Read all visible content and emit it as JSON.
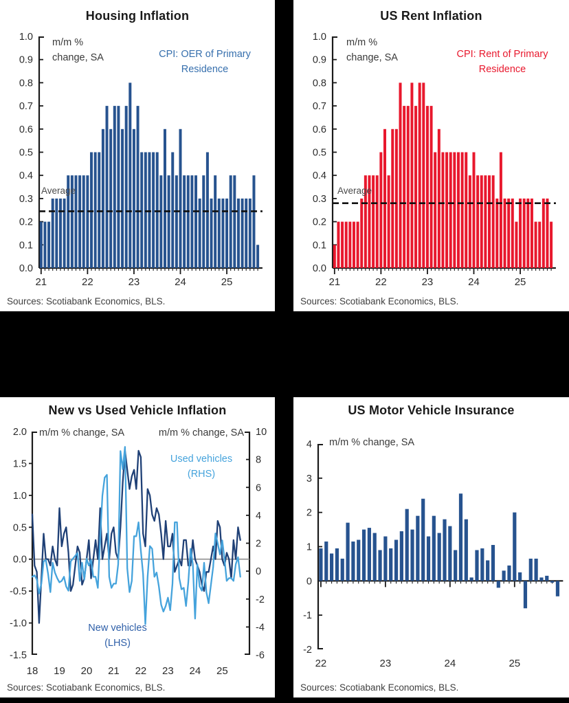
{
  "page_background": "#000000",
  "panel_background": "#ffffff",
  "colors": {
    "navy_bar": "#27538F",
    "red_bar": "#E8182D",
    "navy_line": "#1F4076",
    "light_blue_line": "#45A3DC",
    "legend_blue_text": "#366FAD",
    "legend_red_text": "#E8182D",
    "new_vehicles_label_blue": "#2E5FA8",
    "axis": "#1a1a1a",
    "zero_line_gray": "#8f8f8f",
    "average_dash": "#111111"
  },
  "chart_data": [
    {
      "type": "bar",
      "title": "Housing Inflation",
      "unit_label": [
        "m/m %",
        "change, SA"
      ],
      "legend": [
        "CPI: OER of Primary",
        "Residence"
      ],
      "legend_color": "#366FAD",
      "bar_color": "#27538F",
      "average_label": "Average",
      "average_value": 0.245,
      "ylim": [
        0,
        1.0
      ],
      "y_tick_labels": [
        "1.0",
        "0.9",
        "0.8",
        "0.7",
        "0.6",
        "0.5",
        "0.4",
        "0.3",
        "0.2",
        "0.1",
        "0.0"
      ],
      "x_tick_labels": [
        "21",
        "22",
        "23",
        "24",
        "25"
      ],
      "months_per_tick": 12,
      "values": [
        0.2,
        0.2,
        0.2,
        0.3,
        0.3,
        0.3,
        0.3,
        0.4,
        0.4,
        0.4,
        0.4,
        0.4,
        0.4,
        0.5,
        0.5,
        0.5,
        0.6,
        0.7,
        0.6,
        0.7,
        0.7,
        0.6,
        0.7,
        0.8,
        0.6,
        0.7,
        0.5,
        0.5,
        0.5,
        0.5,
        0.5,
        0.4,
        0.6,
        0.4,
        0.5,
        0.4,
        0.6,
        0.4,
        0.4,
        0.4,
        0.4,
        0.3,
        0.4,
        0.5,
        0.3,
        0.4,
        0.3,
        0.3,
        0.3,
        0.4,
        0.4,
        0.3,
        0.3,
        0.3,
        0.3,
        0.4,
        0.1
      ],
      "sources": "Sources: Scotiabank Economics, BLS."
    },
    {
      "type": "bar",
      "title": "US Rent Inflation",
      "unit_label": [
        "m/m %",
        "change, SA"
      ],
      "legend": [
        "CPI: Rent of Primary",
        "Residence"
      ],
      "legend_color": "#E8182D",
      "bar_color": "#E8182D",
      "average_label": "Average",
      "average_value": 0.28,
      "ylim": [
        0,
        1.0
      ],
      "y_tick_labels": [
        "1.0",
        "0.9",
        "0.8",
        "0.7",
        "0.6",
        "0.5",
        "0.4",
        "0.3",
        "0.2",
        "0.1",
        "0.0"
      ],
      "x_tick_labels": [
        "21",
        "22",
        "23",
        "24",
        "25"
      ],
      "months_per_tick": 12,
      "values": [
        0.1,
        0.2,
        0.2,
        0.2,
        0.2,
        0.2,
        0.2,
        0.3,
        0.4,
        0.4,
        0.4,
        0.4,
        0.5,
        0.6,
        0.4,
        0.6,
        0.6,
        0.8,
        0.7,
        0.7,
        0.8,
        0.7,
        0.8,
        0.8,
        0.7,
        0.7,
        0.5,
        0.6,
        0.5,
        0.5,
        0.5,
        0.5,
        0.5,
        0.5,
        0.5,
        0.4,
        0.5,
        0.4,
        0.4,
        0.4,
        0.4,
        0.4,
        0.3,
        0.5,
        0.3,
        0.3,
        0.3,
        0.2,
        0.3,
        0.3,
        0.3,
        0.3,
        0.2,
        0.2,
        0.3,
        0.3,
        0.2
      ],
      "sources": "Sources: Scotiabank Economics, BLS."
    },
    {
      "type": "line",
      "title": "New vs Used Vehicle Inflation",
      "unit_label_left": "m/m % change, SA",
      "unit_label_right": "m/m % change, SA",
      "x_tick_labels": [
        "18",
        "19",
        "20",
        "21",
        "22",
        "23",
        "24",
        "25"
      ],
      "months_per_tick": 12,
      "left_axis": {
        "ylim": [
          -1.5,
          2.0
        ],
        "y_tick_labels": [
          "2.0",
          "1.5",
          "1.0",
          "0.5",
          "0.0",
          "-0.5",
          "-1.0",
          "-1.5"
        ]
      },
      "right_axis": {
        "ylim": [
          -6,
          10
        ],
        "y_tick_labels": [
          "10",
          "8",
          "6",
          "4",
          "2",
          "0",
          "-2",
          "-4",
          "-6"
        ]
      },
      "series": [
        {
          "name": "New vehicles (LHS)",
          "axis": "left",
          "color": "#1F4076",
          "label": [
            "New vehicles",
            "(LHS)"
          ],
          "label_color": "#2E5FA8",
          "values": [
            0.7,
            -0.1,
            -0.2,
            -1.0,
            -0.3,
            0.4,
            0.0,
            0.0,
            -0.1,
            0.2,
            0.0,
            -0.1,
            0.8,
            0.2,
            0.4,
            0.5,
            0.1,
            -0.5,
            -0.4,
            -0.1,
            0.2,
            0.1,
            -0.4,
            -0.3,
            0.0,
            0.3,
            -0.3,
            0.0,
            0.3,
            0.0,
            0.8,
            0.0,
            0.2,
            0.4,
            0.0,
            0.4,
            0.5,
            0.1,
            0.0,
            0.5,
            1.2,
            1.7,
            1.4,
            1.1,
            1.3,
            1.4,
            1.1,
            1.7,
            1.6,
            0.4,
            0.2,
            1.1,
            1.0,
            0.7,
            0.6,
            0.8,
            0.7,
            0.4,
            0.0,
            0.6,
            0.2,
            0.2,
            0.4,
            -0.2,
            -0.1,
            0.0,
            -0.1,
            0.3,
            0.3,
            -0.1,
            -0.1,
            0.3,
            0.0,
            -0.1,
            -0.2,
            -0.4,
            -0.5,
            -0.2,
            -0.2,
            0.0,
            0.2,
            0.0,
            0.6,
            0.5,
            0.0,
            -0.1,
            0.1,
            0.0,
            -0.3,
            0.3,
            0.0,
            0.5,
            0.3
          ]
        },
        {
          "name": "Used vehicles (RHS)",
          "axis": "right",
          "color": "#45A3DC",
          "label": [
            "Used vehicles",
            "(RHS)"
          ],
          "label_color": "#45A3DC",
          "values": [
            -0.4,
            -0.3,
            -0.6,
            -1.6,
            -0.9,
            0.7,
            0.8,
            -0.2,
            -1.5,
            0.6,
            -0.1,
            -0.5,
            -0.8,
            -0.7,
            -0.4,
            -1.1,
            -1.4,
            0.7,
            0.9,
            1.1,
            1.3,
            -0.7,
            0.6,
            -0.6,
            0.9,
            0.4,
            0.8,
            -0.4,
            -0.4,
            -1.2,
            2.3,
            5.4,
            6.7,
            6.9,
            -0.4,
            -1.2,
            -0.9,
            -0.9,
            0.5,
            8.6,
            7.3,
            8.9,
            0.2,
            -1.5,
            -0.7,
            2.5,
            2.5,
            3.5,
            1.5,
            -0.2,
            -3.8,
            -0.4,
            1.8,
            1.6,
            -0.4,
            -0.1,
            -1.1,
            -2.4,
            -2.9,
            -2.5,
            -1.9,
            -2.8,
            -0.9,
            3.5,
            3.5,
            -0.5,
            -1.3,
            -1.2,
            -2.5,
            -0.8,
            1.6,
            0.5,
            -3.4,
            0.5,
            -1.1,
            -1.4,
            0.6,
            -1.5,
            -2.3,
            -1.0,
            0.3,
            2.7,
            2.0,
            1.2,
            2.2,
            0.9,
            -0.7,
            -0.5,
            -0.5,
            -0.7,
            0.5,
            1.0,
            -0.4
          ]
        }
      ],
      "sources": "Sources: Scotiabank Economics, BLS."
    },
    {
      "type": "bar",
      "title": "US Motor Vehicle Insurance",
      "unit_label": [
        "m/m % change, SA"
      ],
      "bar_color": "#27538F",
      "ylim": [
        -2,
        4
      ],
      "y_tick_labels": [
        "4",
        "3",
        "2",
        "1",
        "0",
        "-1",
        "-2"
      ],
      "x_tick_labels": [
        "22",
        "23",
        "24",
        "25"
      ],
      "months_per_tick": 12,
      "values": [
        0.95,
        1.15,
        0.8,
        0.95,
        0.65,
        1.7,
        1.15,
        1.2,
        1.5,
        1.55,
        1.4,
        0.9,
        1.3,
        0.95,
        1.2,
        1.45,
        2.1,
        1.5,
        1.9,
        2.4,
        1.3,
        1.9,
        1.4,
        1.8,
        1.6,
        0.9,
        2.55,
        1.8,
        0.1,
        0.9,
        0.95,
        0.6,
        1.05,
        -0.2,
        0.3,
        0.45,
        2.0,
        0.25,
        -0.8,
        0.65,
        0.65,
        0.1,
        0.15,
        -0.05,
        -0.45
      ],
      "sources": "Sources: Scotiabank Economics, BLS."
    }
  ]
}
